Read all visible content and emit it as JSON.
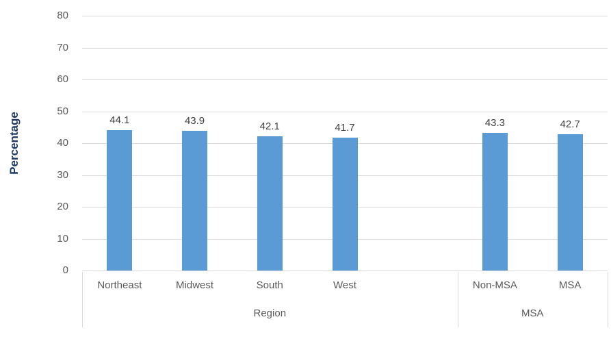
{
  "chart_data": {
    "type": "bar",
    "title": "",
    "ylabel": "Percentage",
    "xlabel": "",
    "ylim": [
      0,
      80
    ],
    "yticks": [
      0,
      10,
      20,
      30,
      40,
      50,
      60,
      70,
      80
    ],
    "grid": true,
    "legend": false,
    "data_labels_shown": true,
    "groups": [
      {
        "label": "Region",
        "categories": [
          "Northeast",
          "Midwest",
          "South",
          "West"
        ],
        "values": [
          44.1,
          43.9,
          42.1,
          41.7
        ]
      },
      {
        "label": "MSA",
        "categories": [
          "Non-MSA",
          "MSA"
        ],
        "values": [
          43.3,
          42.7
        ]
      }
    ],
    "colors": {
      "bar": "#5b9bd5",
      "gridline": "#d9d9d9",
      "axis_text": "#595959",
      "data_label": "#404040",
      "y_axis_title": "#1f3864",
      "background": "#ffffff"
    }
  }
}
